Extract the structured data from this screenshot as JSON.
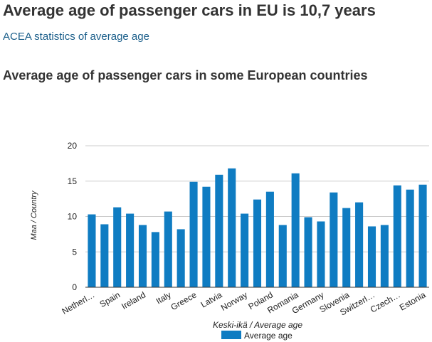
{
  "header": {
    "title": "Average age of passenger cars in EU is 10,7 years",
    "link_text": "ACEA statistics of average age",
    "section_title": "Average age of passenger cars in some European countries"
  },
  "colors": {
    "bar": "#0f7cc2",
    "grid": "#cccccc",
    "axis": "#333333"
  },
  "chart_data": {
    "type": "bar",
    "title": "",
    "xlabel": "Keski-ikä / Average age",
    "ylabel": "Maa / Country",
    "ylim": [
      0,
      20
    ],
    "yticks": [
      0,
      5,
      10,
      15,
      20
    ],
    "grid": true,
    "legend": "bottom",
    "categories": [
      "Netherl…",
      "",
      "Spain",
      "",
      "Ireland",
      "",
      "Italy",
      "",
      "Greece",
      "",
      "Latvia",
      "",
      "Norway",
      "",
      "Poland",
      "",
      "Romania",
      "",
      "Germany",
      "",
      "Slovenia",
      "",
      "Switzerl…",
      "",
      "Czech…",
      "",
      "Estonia"
    ],
    "series": [
      {
        "name": "Average age",
        "values": [
          10.3,
          8.9,
          11.3,
          10.4,
          8.8,
          7.8,
          10.7,
          8.2,
          14.9,
          14.2,
          15.9,
          16.8,
          10.4,
          12.4,
          13.5,
          8.8,
          16.1,
          9.9,
          9.3,
          13.4,
          11.2,
          12.0,
          8.6,
          8.8,
          14.4,
          13.8,
          14.5
        ]
      }
    ]
  }
}
